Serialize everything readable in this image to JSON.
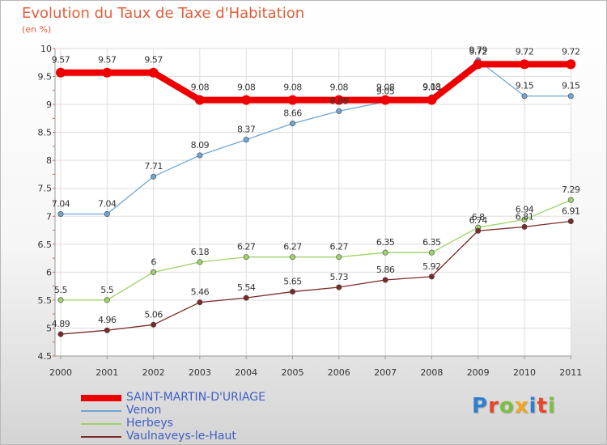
{
  "title": "Evolution du Taux de Taxe d'Habitation",
  "subtitle": "(en %)",
  "logo": {
    "text": "Proxiti",
    "colors": [
      "#2f7fd0",
      "#e8452a",
      "#7bc043",
      "#f5a623",
      "#2f7fd0",
      "#e8452a",
      "#7bc043"
    ]
  },
  "chart_data": {
    "type": "line",
    "title": "Evolution du Taux de Taxe d'Habitation",
    "ylabel": "(en %)",
    "xlabel": "",
    "x": [
      "2000",
      "2001",
      "2002",
      "2003",
      "2004",
      "2005",
      "2006",
      "2007",
      "2008",
      "2009",
      "2010",
      "2011"
    ],
    "ylim": [
      4.5,
      10
    ],
    "yticks": [
      "4.5",
      "5",
      "5.5",
      "6",
      "6.5",
      "7",
      "7.5",
      "8",
      "8.5",
      "9",
      "9.5",
      "10"
    ],
    "grid": true,
    "legend_position": "bottom-left",
    "series": [
      {
        "name": "SAINT-MARTIN-D'URIAGE",
        "color": "#ee0000",
        "values": [
          9.57,
          9.57,
          9.57,
          9.08,
          9.08,
          9.08,
          9.08,
          9.08,
          9.08,
          9.72,
          9.72,
          9.72
        ],
        "labels": [
          "9.57",
          "9.57",
          "9.57",
          "9.08",
          "9.08",
          "9.08",
          "9.08",
          "9.08",
          "9.08",
          "9.72",
          "9.72",
          "9.72"
        ]
      },
      {
        "name": "Venon",
        "color": "#6fa6d6",
        "values": [
          7.04,
          7.04,
          7.71,
          8.09,
          8.37,
          8.66,
          8.88,
          9.05,
          9.13,
          9.79,
          9.15,
          9.15
        ],
        "labels": [
          "7.04",
          "7.04",
          "7.71",
          "8.09",
          "8.37",
          "8.66",
          "8.88",
          "9.05",
          "9.13",
          "9.79",
          "9.15",
          "9.15"
        ]
      },
      {
        "name": "Herbeys",
        "color": "#9ed26a",
        "values": [
          5.5,
          5.5,
          6,
          6.18,
          6.27,
          6.27,
          6.27,
          6.35,
          6.35,
          6.8,
          6.94,
          7.29
        ],
        "labels": [
          "5.5",
          "5.5",
          "6",
          "6.18",
          "6.27",
          "6.27",
          "6.27",
          "6.35",
          "6.35",
          "6.8",
          "6.94",
          "7.29"
        ]
      },
      {
        "name": "Vaulnaveys-le-Haut",
        "color": "#7a2a2a",
        "values": [
          4.89,
          4.96,
          5.06,
          5.46,
          5.54,
          5.65,
          5.73,
          5.86,
          5.92,
          6.74,
          6.81,
          6.91
        ],
        "labels": [
          "4.89",
          "4.96",
          "5.06",
          "5.46",
          "5.54",
          "5.65",
          "5.73",
          "5.86",
          "5.92",
          "6.74",
          "6.81",
          "6.91"
        ]
      }
    ]
  }
}
